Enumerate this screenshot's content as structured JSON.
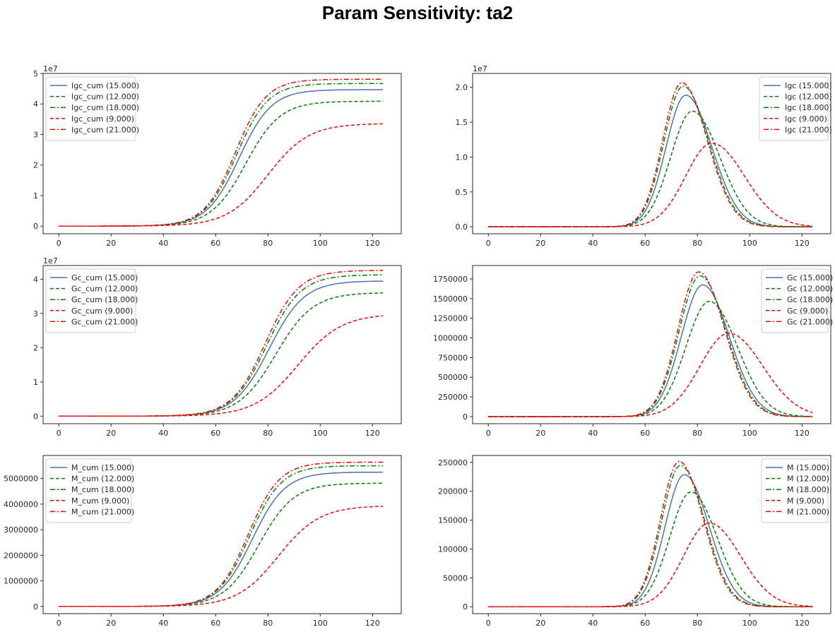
{
  "title": "Param Sensitivity: ta2",
  "styles": {
    "15.000": {
      "color": "#4c72b0",
      "dash": ""
    },
    "12.000": {
      "color": "#008000",
      "dash": "5,3"
    },
    "18.000": {
      "color": "#008000",
      "dash": "7,3,2,3"
    },
    "9.000": {
      "color": "#ff0000",
      "dash": "5,3"
    },
    "21.000": {
      "color": "#ff0000",
      "dash": "7,3,2,3"
    }
  },
  "chart_data": [
    {
      "type": "line",
      "name": "Igc_cum",
      "xlim": [
        -6,
        131
      ],
      "ylim": [
        -0.25,
        5.0
      ],
      "exponent": "1e7",
      "xticks": [
        "0",
        "20",
        "40",
        "60",
        "80",
        "100",
        "120"
      ],
      "yticks": [
        "0",
        "1",
        "2",
        "3",
        "4",
        "5"
      ],
      "ytick_values": [
        0,
        1,
        2,
        3,
        4,
        5
      ],
      "legend": "upper left",
      "series": [
        {
          "name": "Igc_cum (15.000)",
          "param": "15.000",
          "kind": "sigmoid",
          "L": 4.47,
          "x0": 69.0,
          "s": 6.2
        },
        {
          "name": "Igc_cum (12.000)",
          "param": "12.000",
          "kind": "sigmoid",
          "L": 4.09,
          "x0": 71.5,
          "s": 6.6
        },
        {
          "name": "Igc_cum (18.000)",
          "param": "18.000",
          "kind": "sigmoid",
          "L": 4.67,
          "x0": 68.0,
          "s": 6.0
        },
        {
          "name": "Igc_cum (9.000)",
          "param": "9.000",
          "kind": "sigmoid",
          "L": 3.36,
          "x0": 80.0,
          "s": 7.8
        },
        {
          "name": "Igc_cum (21.000)",
          "param": "21.000",
          "kind": "sigmoid",
          "L": 4.81,
          "x0": 67.5,
          "s": 5.9
        }
      ]
    },
    {
      "type": "line",
      "name": "Igc",
      "xlim": [
        -6,
        131
      ],
      "ylim": [
        -0.1,
        2.2
      ],
      "exponent": "1e7",
      "xticks": [
        "0",
        "20",
        "40",
        "60",
        "80",
        "100",
        "120"
      ],
      "yticks": [
        "0.0",
        "0.5",
        "1.0",
        "1.5",
        "2.0"
      ],
      "ytick_values": [
        0,
        0.5,
        1.0,
        1.5,
        2.0
      ],
      "legend": "upper right",
      "series": [
        {
          "name": "Igc (15.000)",
          "param": "15.000",
          "kind": "peak",
          "A": 1.89,
          "mu": 75.5,
          "s1": 7.5,
          "s2": 10.0
        },
        {
          "name": "Igc (12.000)",
          "param": "12.000",
          "kind": "peak",
          "A": 1.66,
          "mu": 78.0,
          "s1": 8.2,
          "s2": 10.5
        },
        {
          "name": "Igc (18.000)",
          "param": "18.000",
          "kind": "peak",
          "A": 2.02,
          "mu": 74.5,
          "s1": 7.3,
          "s2": 9.8
        },
        {
          "name": "Igc (9.000)",
          "param": "9.000",
          "kind": "peak",
          "A": 1.2,
          "mu": 85.5,
          "s1": 10.0,
          "s2": 12.5
        },
        {
          "name": "Igc (21.000)",
          "param": "21.000",
          "kind": "peak",
          "A": 2.07,
          "mu": 74.0,
          "s1": 7.2,
          "s2": 9.7
        }
      ]
    },
    {
      "type": "line",
      "name": "Gc_cum",
      "xlim": [
        -6,
        131
      ],
      "ylim": [
        -0.22,
        4.4
      ],
      "exponent": "1e7",
      "xticks": [
        "0",
        "20",
        "40",
        "60",
        "80",
        "100",
        "120"
      ],
      "yticks": [
        "0",
        "1",
        "2",
        "3",
        "4"
      ],
      "ytick_values": [
        0,
        1,
        2,
        3,
        4
      ],
      "legend": "upper left",
      "series": [
        {
          "name": "Gc_cum (15.000)",
          "param": "15.000",
          "kind": "sigmoid",
          "L": 3.95,
          "x0": 80.5,
          "s": 6.7
        },
        {
          "name": "Gc_cum (12.000)",
          "param": "12.000",
          "kind": "sigmoid",
          "L": 3.61,
          "x0": 83.0,
          "s": 7.1
        },
        {
          "name": "Gc_cum (18.000)",
          "param": "18.000",
          "kind": "sigmoid",
          "L": 4.13,
          "x0": 79.5,
          "s": 6.5
        },
        {
          "name": "Gc_cum (9.000)",
          "param": "9.000",
          "kind": "sigmoid",
          "L": 2.99,
          "x0": 91.5,
          "s": 8.3
        },
        {
          "name": "Gc_cum (21.000)",
          "param": "21.000",
          "kind": "sigmoid",
          "L": 4.26,
          "x0": 79.0,
          "s": 6.4
        }
      ]
    },
    {
      "type": "line",
      "name": "Gc",
      "xlim": [
        -6,
        131
      ],
      "ylim": [
        -90000,
        1920000
      ],
      "xticks": [
        "0",
        "20",
        "40",
        "60",
        "80",
        "100",
        "120"
      ],
      "yticks": [
        "0",
        "250000",
        "500000",
        "750000",
        "1000000",
        "1250000",
        "1500000",
        "1750000"
      ],
      "ytick_values": [
        0,
        250000,
        500000,
        750000,
        1000000,
        1250000,
        1500000,
        1750000
      ],
      "legend": "upper right",
      "series": [
        {
          "name": "Gc (15.000)",
          "param": "15.000",
          "kind": "peak",
          "A": 1675000,
          "mu": 82.0,
          "s1": 8.2,
          "s2": 10.2
        },
        {
          "name": "Gc (12.000)",
          "param": "12.000",
          "kind": "peak",
          "A": 1465000,
          "mu": 84.5,
          "s1": 8.9,
          "s2": 10.8
        },
        {
          "name": "Gc (18.000)",
          "param": "18.000",
          "kind": "peak",
          "A": 1790000,
          "mu": 81.0,
          "s1": 8.0,
          "s2": 10.0
        },
        {
          "name": "Gc (9.000)",
          "param": "9.000",
          "kind": "peak",
          "A": 1060000,
          "mu": 92.0,
          "s1": 11.0,
          "s2": 13.0
        },
        {
          "name": "Gc (21.000)",
          "param": "21.000",
          "kind": "peak",
          "A": 1840000,
          "mu": 80.5,
          "s1": 7.9,
          "s2": 9.9
        }
      ]
    },
    {
      "type": "line",
      "name": "M_cum",
      "xlim": [
        -6,
        131
      ],
      "ylim": [
        -280000,
        5900000
      ],
      "xticks": [
        "0",
        "20",
        "40",
        "60",
        "80",
        "100",
        "120"
      ],
      "yticks": [
        "0",
        "1000000",
        "2000000",
        "3000000",
        "4000000",
        "5000000"
      ],
      "ytick_values": [
        0,
        1000000,
        2000000,
        3000000,
        4000000,
        5000000
      ],
      "legend": "upper left",
      "series": [
        {
          "name": "M_cum (15.000)",
          "param": "15.000",
          "kind": "sigmoid",
          "L": 5250000,
          "x0": 74.0,
          "s": 6.3
        },
        {
          "name": "M_cum (12.000)",
          "param": "12.000",
          "kind": "sigmoid",
          "L": 4820000,
          "x0": 76.5,
          "s": 6.7
        },
        {
          "name": "M_cum (18.000)",
          "param": "18.000",
          "kind": "sigmoid",
          "L": 5500000,
          "x0": 73.0,
          "s": 6.1
        },
        {
          "name": "M_cum (9.000)",
          "param": "9.000",
          "kind": "sigmoid",
          "L": 3940000,
          "x0": 84.0,
          "s": 7.9
        },
        {
          "name": "M_cum (21.000)",
          "param": "21.000",
          "kind": "sigmoid",
          "L": 5640000,
          "x0": 72.5,
          "s": 6.0
        }
      ]
    },
    {
      "type": "line",
      "name": "M",
      "xlim": [
        -6,
        131
      ],
      "ylim": [
        -12000,
        262000
      ],
      "xticks": [
        "0",
        "20",
        "40",
        "60",
        "80",
        "100",
        "120"
      ],
      "yticks": [
        "0",
        "50000",
        "100000",
        "150000",
        "200000",
        "250000"
      ],
      "ytick_values": [
        0,
        50000,
        100000,
        150000,
        200000,
        250000
      ],
      "legend": "upper right",
      "series": [
        {
          "name": "M (15.000)",
          "param": "15.000",
          "kind": "peak",
          "A": 229000,
          "mu": 75.0,
          "s1": 7.4,
          "s2": 9.5
        },
        {
          "name": "M (12.000)",
          "param": "12.000",
          "kind": "peak",
          "A": 199000,
          "mu": 77.5,
          "s1": 8.1,
          "s2": 10.0
        },
        {
          "name": "M (18.000)",
          "param": "18.000",
          "kind": "peak",
          "A": 245000,
          "mu": 73.5,
          "s1": 7.2,
          "s2": 9.3
        },
        {
          "name": "M (9.000)",
          "param": "9.000",
          "kind": "peak",
          "A": 145000,
          "mu": 84.5,
          "s1": 9.8,
          "s2": 12.0
        },
        {
          "name": "M (21.000)",
          "param": "21.000",
          "kind": "peak",
          "A": 252000,
          "mu": 73.0,
          "s1": 7.1,
          "s2": 9.2
        }
      ]
    }
  ]
}
